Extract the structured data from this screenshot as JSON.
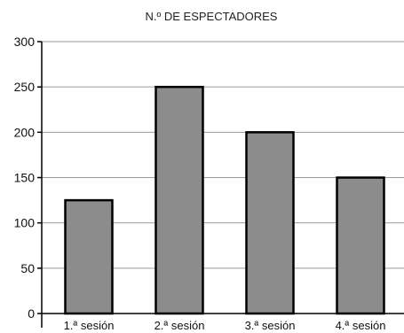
{
  "chart_data": {
    "type": "bar",
    "title": "N.º DE ESPECTADORES",
    "xlabel": "",
    "ylabel": "",
    "categories": [
      "1.ª sesión",
      "2.ª sesión",
      "3.ª sesión",
      "4.ª sesión"
    ],
    "values": [
      125,
      250,
      200,
      150
    ],
    "ylim": [
      0,
      300
    ],
    "yticks": [
      0,
      50,
      100,
      150,
      200,
      250,
      300
    ],
    "yticks_labels": [
      "0",
      "50",
      "100",
      "150",
      "200",
      "250",
      "300"
    ],
    "grid": true,
    "legend": "none",
    "bar_color": "#8c8c8c",
    "bar_edge_color": "#000000",
    "grid_color": "#9a9a9a"
  }
}
